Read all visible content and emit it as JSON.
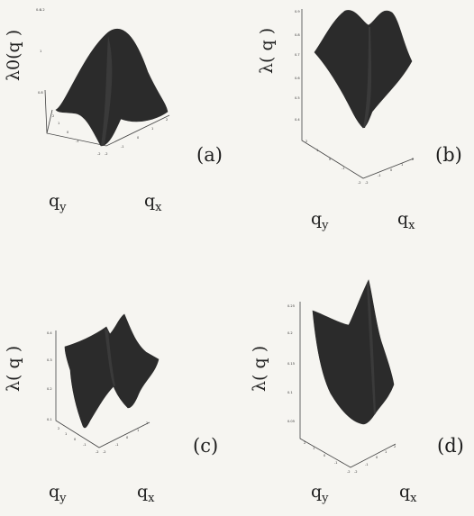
{
  "panels": [
    {
      "id": "a",
      "letter": "(a)",
      "ylabel": "λ0(q  )",
      "xlabel": "q",
      "xsub": "x",
      "zlabel": "q",
      "zsub": "y",
      "zticks": [
        "0.8",
        "1",
        "1.2"
      ],
      "qticks_x": [
        "-2",
        "-1",
        "0",
        "1",
        "2"
      ],
      "qticks_y": [
        "-2",
        "-1",
        "0",
        "1",
        "2"
      ]
    },
    {
      "id": "b",
      "letter": "(b)",
      "ylabel": "λ( q )",
      "xlabel": "q",
      "xsub": "x",
      "zlabel": "q",
      "zsub": "y",
      "zticks": [
        "0.4",
        "0.5",
        "0.6",
        "0.7",
        "0.8",
        "0.9"
      ],
      "qticks_x": [
        "-2",
        "-1",
        "0",
        "1",
        "2"
      ],
      "qticks_y": [
        "-2",
        "-1",
        "0",
        "1",
        "2"
      ]
    },
    {
      "id": "c",
      "letter": "(c)",
      "ylabel": "λ( q )",
      "xlabel": "q",
      "xsub": "x",
      "zlabel": "q",
      "zsub": "y",
      "zticks": [
        "0.1",
        "0.2",
        "0.3",
        "0.4"
      ],
      "qticks_x": [
        "-2",
        "-1",
        "0",
        "1",
        "2"
      ],
      "qticks_y": [
        "-2",
        "-1",
        "0",
        "1",
        "2"
      ]
    },
    {
      "id": "d",
      "letter": "(d)",
      "ylabel": "λ( q )",
      "xlabel": "q",
      "xsub": "x",
      "zlabel": "q",
      "zsub": "y",
      "zticks": [
        "0.05",
        "0.1",
        "0.15",
        "0.2",
        "0.25"
      ],
      "qticks_x": [
        "-2",
        "-1",
        "0",
        "1",
        "2"
      ],
      "qticks_y": [
        "-2",
        "-1",
        "0",
        "1",
        "2"
      ]
    }
  ]
}
